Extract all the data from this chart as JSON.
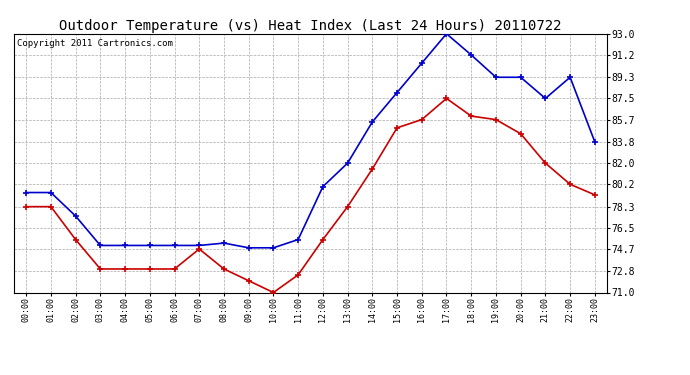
{
  "title": "Outdoor Temperature (vs) Heat Index (Last 24 Hours) 20110722",
  "copyright": "Copyright 2011 Cartronics.com",
  "hours": [
    "00:00",
    "01:00",
    "02:00",
    "03:00",
    "04:00",
    "05:00",
    "06:00",
    "07:00",
    "08:00",
    "09:00",
    "10:00",
    "11:00",
    "12:00",
    "13:00",
    "14:00",
    "15:00",
    "16:00",
    "17:00",
    "18:00",
    "19:00",
    "20:00",
    "21:00",
    "22:00",
    "23:00"
  ],
  "blue_data": [
    79.5,
    79.5,
    77.5,
    75.0,
    75.0,
    75.0,
    75.0,
    75.0,
    75.2,
    74.8,
    74.8,
    75.5,
    80.0,
    82.0,
    85.5,
    88.0,
    90.5,
    93.0,
    91.2,
    89.3,
    89.3,
    87.5,
    89.3,
    83.8
  ],
  "red_data": [
    78.3,
    78.3,
    75.5,
    73.0,
    73.0,
    73.0,
    73.0,
    74.7,
    73.0,
    72.0,
    71.0,
    72.5,
    75.5,
    78.3,
    81.5,
    85.0,
    85.7,
    87.5,
    86.0,
    85.7,
    84.5,
    82.0,
    80.2,
    79.3
  ],
  "y_ticks": [
    71.0,
    72.8,
    74.7,
    76.5,
    78.3,
    80.2,
    82.0,
    83.8,
    85.7,
    87.5,
    89.3,
    91.2,
    93.0
  ],
  "ylim": [
    71.0,
    93.0
  ],
  "blue_color": "#0000CC",
  "red_color": "#CC0000",
  "bg_color": "#ffffff",
  "plot_bg": "#ffffff",
  "grid_color": "#aaaaaa",
  "title_fontsize": 10,
  "copyright_fontsize": 6.5
}
